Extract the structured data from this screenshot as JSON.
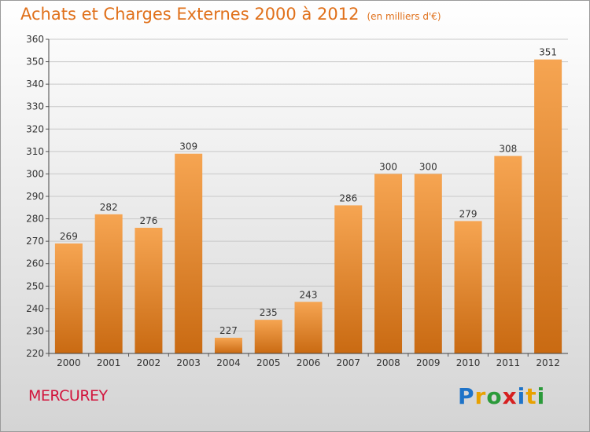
{
  "title": "Achats et Charges Externes 2000 à 2012",
  "subtitle": "(en milliers d'€)",
  "location": "MERCUREY",
  "logo": {
    "letters": [
      "P",
      "r",
      "o",
      "x",
      "i",
      "t",
      "i"
    ],
    "colors": [
      "#1e73c8",
      "#e8a100",
      "#2b9a3a",
      "#d62020",
      "#1e73c8",
      "#e8a100",
      "#2b9a3a"
    ]
  },
  "colors": {
    "bar_top": "#f6a552",
    "bar_bottom": "#c96a12",
    "grid": "#c8c8c8"
  },
  "chart_data": {
    "type": "bar",
    "categories": [
      "2000",
      "2001",
      "2002",
      "2003",
      "2004",
      "2005",
      "2006",
      "2007",
      "2008",
      "2009",
      "2010",
      "2011",
      "2012"
    ],
    "values": [
      269,
      282,
      276,
      309,
      227,
      235,
      243,
      286,
      300,
      300,
      279,
      308,
      351
    ],
    "title": "Achats et Charges Externes 2000 à 2012",
    "xlabel": "",
    "ylabel": "",
    "ylim": [
      220,
      360
    ],
    "yticks": [
      220,
      230,
      240,
      250,
      260,
      270,
      280,
      290,
      300,
      310,
      320,
      330,
      340,
      350,
      360
    ],
    "grid": true,
    "legend": "none"
  }
}
